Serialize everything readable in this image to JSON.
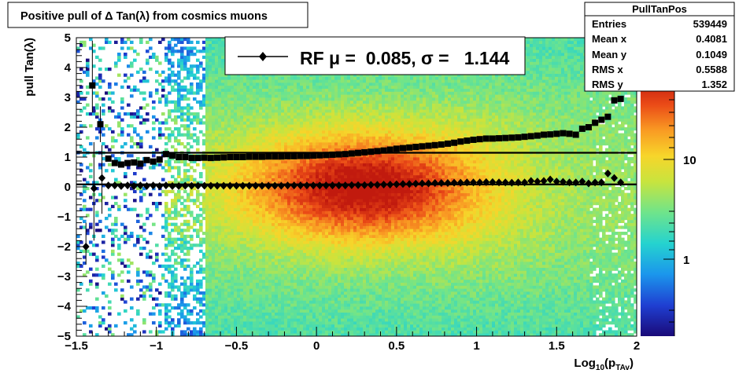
{
  "title": "Positive pull of Δ Tan(λ) from cosmics muons",
  "stats": {
    "name": "PullTanPos",
    "rows": [
      {
        "label": "Entries",
        "value": "539449"
      },
      {
        "label": "Mean x",
        "value": "0.4081"
      },
      {
        "label": "Mean y",
        "value": "0.1049"
      },
      {
        "label": "RMS x",
        "value": "0.5588"
      },
      {
        "label": "RMS y",
        "value": "1.352"
      }
    ]
  },
  "legend": {
    "text": "RF μ =  0.085, σ =   1.144"
  },
  "colors": {
    "profile": "#000000",
    "frame": "#000000",
    "background": "#ffffff"
  },
  "chart_data": {
    "type": "heatmap",
    "title": "Positive pull of Δ Tan(λ) from cosmics muons",
    "xlabel_main": "Log",
    "xlabel_sub1": "10",
    "xlabel_mid": "(p",
    "xlabel_sub2": "TAv",
    "xlabel_end": ")",
    "ylabel": "pull Tan(λ)",
    "xlim": [
      -1.5,
      2
    ],
    "ylim": [
      -5,
      5
    ],
    "x_ticks": [
      -1.5,
      -1,
      -0.5,
      0,
      0.5,
      1,
      1.5,
      2
    ],
    "x_tick_labels": [
      "−1.5",
      "−1",
      "−0.5",
      "0",
      "0.5",
      "1",
      "1.5",
      "2"
    ],
    "y_ticks": [
      -5,
      -4,
      -3,
      -2,
      -1,
      0,
      1,
      2,
      3,
      4,
      5
    ],
    "y_tick_labels": [
      "−5",
      "−4",
      "−3",
      "−2",
      "−1",
      "0",
      "1",
      "2",
      "3",
      "4",
      "5"
    ],
    "z_scale": "log",
    "z_tick_labels": [
      "1",
      "10"
    ],
    "horizontal_lines": [
      0.085,
      1.144
    ],
    "series": [
      {
        "marker": "square",
        "points": [
          [
            -1.4,
            3.4
          ],
          [
            -1.35,
            2.1
          ],
          [
            -1.3,
            0.95
          ],
          [
            -1.26,
            0.8
          ],
          [
            -1.22,
            0.75
          ],
          [
            -1.18,
            0.8
          ],
          [
            -1.14,
            0.82
          ],
          [
            -1.1,
            0.78
          ],
          [
            -1.06,
            0.9
          ],
          [
            -1.02,
            0.85
          ],
          [
            -0.98,
            0.92
          ],
          [
            -0.94,
            1.1
          ],
          [
            -0.9,
            1.05
          ],
          [
            -0.86,
            1.0
          ],
          [
            -0.82,
            1.0
          ],
          [
            -0.78,
            0.97
          ],
          [
            -0.74,
            0.97
          ],
          [
            -0.7,
            0.98
          ],
          [
            -0.66,
            0.97
          ],
          [
            -0.62,
            0.98
          ],
          [
            -0.58,
            0.99
          ],
          [
            -0.54,
            1.0
          ],
          [
            -0.5,
            1.0
          ],
          [
            -0.46,
            1.0
          ],
          [
            -0.42,
            1.01
          ],
          [
            -0.38,
            1.01
          ],
          [
            -0.34,
            1.01
          ],
          [
            -0.3,
            1.02
          ],
          [
            -0.26,
            1.02
          ],
          [
            -0.22,
            1.02
          ],
          [
            -0.18,
            1.03
          ],
          [
            -0.14,
            1.03
          ],
          [
            -0.1,
            1.04
          ],
          [
            -0.06,
            1.04
          ],
          [
            -0.02,
            1.05
          ],
          [
            0.02,
            1.06
          ],
          [
            0.06,
            1.07
          ],
          [
            0.1,
            1.08
          ],
          [
            0.14,
            1.09
          ],
          [
            0.18,
            1.1
          ],
          [
            0.22,
            1.12
          ],
          [
            0.26,
            1.14
          ],
          [
            0.3,
            1.16
          ],
          [
            0.34,
            1.18
          ],
          [
            0.38,
            1.2
          ],
          [
            0.42,
            1.22
          ],
          [
            0.46,
            1.25
          ],
          [
            0.5,
            1.28
          ],
          [
            0.54,
            1.3
          ],
          [
            0.58,
            1.32
          ],
          [
            0.62,
            1.34
          ],
          [
            0.66,
            1.36
          ],
          [
            0.7,
            1.38
          ],
          [
            0.74,
            1.4
          ],
          [
            0.78,
            1.42
          ],
          [
            0.82,
            1.45
          ],
          [
            0.86,
            1.48
          ],
          [
            0.9,
            1.52
          ],
          [
            0.94,
            1.55
          ],
          [
            0.98,
            1.58
          ],
          [
            1.02,
            1.6
          ],
          [
            1.06,
            1.62
          ],
          [
            1.1,
            1.62
          ],
          [
            1.14,
            1.63
          ],
          [
            1.18,
            1.64
          ],
          [
            1.22,
            1.65
          ],
          [
            1.26,
            1.66
          ],
          [
            1.3,
            1.68
          ],
          [
            1.34,
            1.7
          ],
          [
            1.38,
            1.72
          ],
          [
            1.42,
            1.75
          ],
          [
            1.46,
            1.76
          ],
          [
            1.5,
            1.78
          ],
          [
            1.54,
            1.8
          ],
          [
            1.58,
            1.78
          ],
          [
            1.62,
            1.75
          ],
          [
            1.66,
            1.95
          ],
          [
            1.7,
            2.0
          ],
          [
            1.74,
            2.15
          ],
          [
            1.78,
            2.25
          ],
          [
            1.82,
            2.35
          ],
          [
            1.86,
            2.9
          ],
          [
            1.9,
            2.95
          ]
        ],
        "error_bars": [
          [
            -1.4,
            2.5,
            4.9
          ],
          [
            -1.35,
            1.5,
            2.7
          ]
        ]
      },
      {
        "marker": "diamond",
        "points": [
          [
            -1.44,
            -2.0
          ],
          [
            -1.39,
            -0.05
          ],
          [
            -1.34,
            0.3
          ],
          [
            -1.3,
            0.05
          ],
          [
            -1.26,
            0.05
          ],
          [
            -1.22,
            0.03
          ],
          [
            -1.18,
            0.05
          ],
          [
            -1.14,
            0.03
          ],
          [
            -1.1,
            0.05
          ],
          [
            -1.06,
            0.03
          ],
          [
            -1.02,
            0.05
          ],
          [
            -0.98,
            0.03
          ],
          [
            -0.94,
            0.05
          ],
          [
            -0.9,
            0.03
          ],
          [
            -0.86,
            0.03
          ],
          [
            -0.82,
            0.04
          ],
          [
            -0.78,
            0.04
          ],
          [
            -0.74,
            0.04
          ],
          [
            -0.7,
            0.04
          ],
          [
            -0.66,
            0.04
          ],
          [
            -0.62,
            0.04
          ],
          [
            -0.58,
            0.04
          ],
          [
            -0.54,
            0.04
          ],
          [
            -0.5,
            0.04
          ],
          [
            -0.46,
            0.04
          ],
          [
            -0.42,
            0.04
          ],
          [
            -0.38,
            0.04
          ],
          [
            -0.34,
            0.04
          ],
          [
            -0.3,
            0.04
          ],
          [
            -0.26,
            0.04
          ],
          [
            -0.22,
            0.04
          ],
          [
            -0.18,
            0.05
          ],
          [
            -0.14,
            0.05
          ],
          [
            -0.1,
            0.05
          ],
          [
            -0.06,
            0.05
          ],
          [
            -0.02,
            0.05
          ],
          [
            0.02,
            0.05
          ],
          [
            0.06,
            0.05
          ],
          [
            0.1,
            0.05
          ],
          [
            0.14,
            0.05
          ],
          [
            0.18,
            0.05
          ],
          [
            0.22,
            0.06
          ],
          [
            0.26,
            0.06
          ],
          [
            0.3,
            0.06
          ],
          [
            0.34,
            0.07
          ],
          [
            0.38,
            0.07
          ],
          [
            0.42,
            0.08
          ],
          [
            0.46,
            0.08
          ],
          [
            0.5,
            0.09
          ],
          [
            0.54,
            0.1
          ],
          [
            0.58,
            0.1
          ],
          [
            0.62,
            0.11
          ],
          [
            0.66,
            0.12
          ],
          [
            0.7,
            0.12
          ],
          [
            0.74,
            0.13
          ],
          [
            0.78,
            0.13
          ],
          [
            0.82,
            0.13
          ],
          [
            0.86,
            0.14
          ],
          [
            0.9,
            0.14
          ],
          [
            0.94,
            0.15
          ],
          [
            0.98,
            0.15
          ],
          [
            1.02,
            0.15
          ],
          [
            1.06,
            0.16
          ],
          [
            1.1,
            0.16
          ],
          [
            1.14,
            0.15
          ],
          [
            1.18,
            0.15
          ],
          [
            1.22,
            0.14
          ],
          [
            1.26,
            0.15
          ],
          [
            1.3,
            0.15
          ],
          [
            1.34,
            0.2
          ],
          [
            1.38,
            0.18
          ],
          [
            1.42,
            0.2
          ],
          [
            1.46,
            0.25
          ],
          [
            1.5,
            0.18
          ],
          [
            1.54,
            0.17
          ],
          [
            1.58,
            0.15
          ],
          [
            1.62,
            0.15
          ],
          [
            1.66,
            0.18
          ],
          [
            1.7,
            0.12
          ],
          [
            1.74,
            0.15
          ],
          [
            1.78,
            0.15
          ],
          [
            1.82,
            0.45
          ],
          [
            1.86,
            0.3
          ],
          [
            1.9,
            0.15
          ]
        ],
        "error_bars": [
          [
            -1.44,
            -2.6,
            -1.2
          ],
          [
            -1.39,
            -1.8,
            1.5
          ],
          [
            -1.34,
            -0.9,
            1.4
          ]
        ]
      }
    ]
  }
}
